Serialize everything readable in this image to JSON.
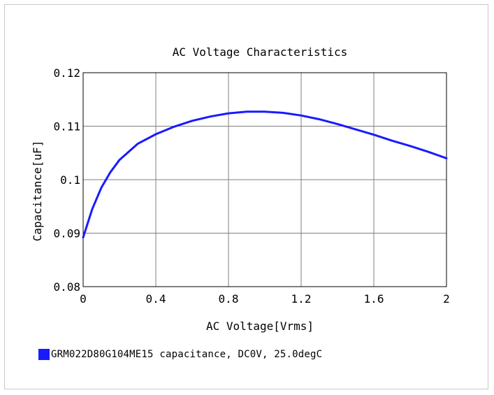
{
  "chart_data": {
    "type": "line",
    "title": "AC Voltage Characteristics",
    "xlabel": "AC Voltage[Vrms]",
    "ylabel": "Capacitance[uF]",
    "xlim": [
      0,
      2
    ],
    "ylim": [
      0.08,
      0.12
    ],
    "x_ticks": [
      0,
      0.4,
      0.8,
      1.2,
      1.6,
      2
    ],
    "x_tick_labels": [
      "0",
      "0.4",
      "0.8",
      "1.2",
      "1.6",
      "2"
    ],
    "y_ticks": [
      0.08,
      0.09,
      0.1,
      0.11,
      0.12
    ],
    "y_tick_labels": [
      "0.08",
      "0.09",
      "0.1",
      "0.11",
      "0.12"
    ],
    "grid": true,
    "legend_position": "bottom-left",
    "series": [
      {
        "name": "GRM022D80G104ME15 capacitance, DC0V, 25.0degC",
        "color": "#1a1aff",
        "x": [
          0,
          0.05,
          0.1,
          0.15,
          0.2,
          0.3,
          0.4,
          0.5,
          0.6,
          0.7,
          0.8,
          0.9,
          1.0,
          1.1,
          1.2,
          1.3,
          1.4,
          1.5,
          1.6,
          1.7,
          1.8,
          1.9,
          2.0
        ],
        "y": [
          0.0892,
          0.0945,
          0.0985,
          0.1014,
          0.1037,
          0.1067,
          0.1085,
          0.1099,
          0.111,
          0.1118,
          0.1124,
          0.1127,
          0.1127,
          0.1125,
          0.112,
          0.1113,
          0.1104,
          0.1094,
          0.1084,
          0.1073,
          0.1063,
          0.1052,
          0.104
        ]
      }
    ]
  }
}
